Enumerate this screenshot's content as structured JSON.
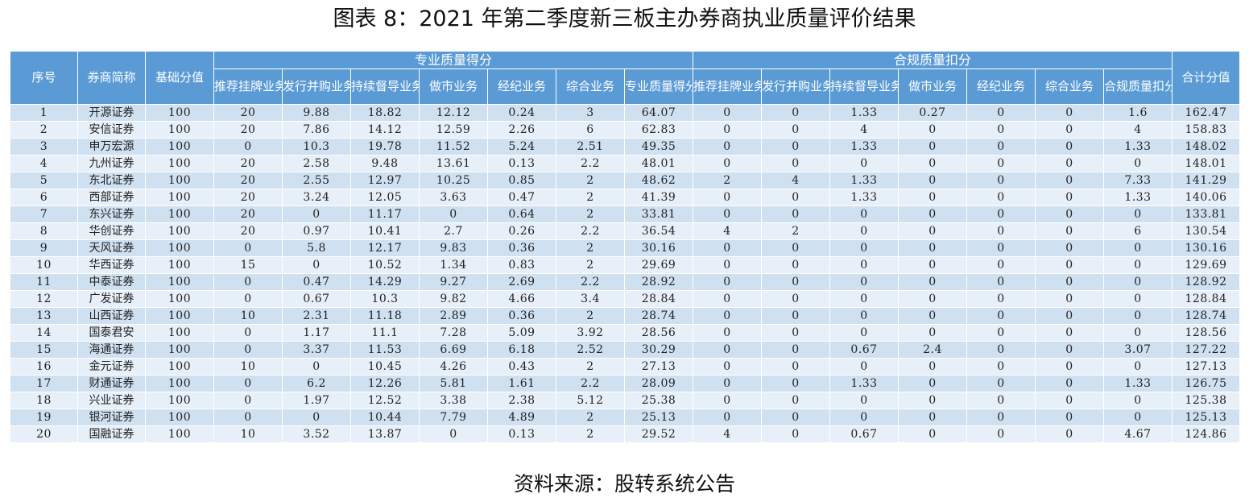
{
  "title": "图表 8：2021 年第二季度新三板主办券商执业质量评价结果",
  "source": "资料来源：股转系统公告",
  "headers": {
    "seq": "序号",
    "broker": "券商简称",
    "base": "基础分值",
    "pro_group": "专业质量得分",
    "comp_group": "合规质量扣分",
    "total": "合计分值",
    "pro_cols": [
      "推荐挂牌业务",
      "发行并购业务",
      "持续督导业务",
      "做市业务",
      "经纪业务",
      "综合业务",
      "专业质量得分合计"
    ],
    "comp_cols": [
      "推荐挂牌业务",
      "发行并购业务",
      "持续督导业务",
      "做市业务",
      "经纪业务",
      "综合业务",
      "合规质量扣分合计"
    ]
  },
  "rows": [
    [
      "1",
      "开源证券",
      "100",
      "20",
      "9.88",
      "18.82",
      "12.12",
      "0.24",
      "3",
      "64.07",
      "0",
      "0",
      "1.33",
      "0.27",
      "0",
      "0",
      "1.6",
      "162.47"
    ],
    [
      "2",
      "安信证券",
      "100",
      "20",
      "7.86",
      "14.12",
      "12.59",
      "2.26",
      "6",
      "62.83",
      "0",
      "0",
      "4",
      "0",
      "0",
      "0",
      "4",
      "158.83"
    ],
    [
      "3",
      "申万宏源",
      "100",
      "0",
      "10.3",
      "19.78",
      "11.52",
      "5.24",
      "2.51",
      "49.35",
      "0",
      "0",
      "1.33",
      "0",
      "0",
      "0",
      "1.33",
      "148.02"
    ],
    [
      "4",
      "九州证券",
      "100",
      "20",
      "2.58",
      "9.48",
      "13.61",
      "0.13",
      "2.2",
      "48.01",
      "0",
      "0",
      "0",
      "0",
      "0",
      "0",
      "0",
      "148.01"
    ],
    [
      "5",
      "东北证券",
      "100",
      "20",
      "2.55",
      "12.97",
      "10.25",
      "0.85",
      "2",
      "48.62",
      "2",
      "4",
      "1.33",
      "0",
      "0",
      "0",
      "7.33",
      "141.29"
    ],
    [
      "6",
      "西部证券",
      "100",
      "20",
      "3.24",
      "12.05",
      "3.63",
      "0.47",
      "2",
      "41.39",
      "0",
      "0",
      "1.33",
      "0",
      "0",
      "0",
      "1.33",
      "140.06"
    ],
    [
      "7",
      "东兴证券",
      "100",
      "20",
      "0",
      "11.17",
      "0",
      "0.64",
      "2",
      "33.81",
      "0",
      "0",
      "0",
      "0",
      "0",
      "0",
      "0",
      "133.81"
    ],
    [
      "8",
      "华创证券",
      "100",
      "20",
      "0.97",
      "10.41",
      "2.7",
      "0.26",
      "2.2",
      "36.54",
      "4",
      "2",
      "0",
      "0",
      "0",
      "0",
      "6",
      "130.54"
    ],
    [
      "9",
      "天风证券",
      "100",
      "0",
      "5.8",
      "12.17",
      "9.83",
      "0.36",
      "2",
      "30.16",
      "0",
      "0",
      "0",
      "0",
      "0",
      "0",
      "0",
      "130.16"
    ],
    [
      "10",
      "华西证券",
      "100",
      "15",
      "0",
      "10.52",
      "1.34",
      "0.83",
      "2",
      "29.69",
      "0",
      "0",
      "0",
      "0",
      "0",
      "0",
      "0",
      "129.69"
    ],
    [
      "11",
      "中泰证券",
      "100",
      "0",
      "0.47",
      "14.29",
      "9.27",
      "2.69",
      "2.2",
      "28.92",
      "0",
      "0",
      "0",
      "0",
      "0",
      "0",
      "0",
      "128.92"
    ],
    [
      "12",
      "广发证券",
      "100",
      "0",
      "0.67",
      "10.3",
      "9.82",
      "4.66",
      "3.4",
      "28.84",
      "0",
      "0",
      "0",
      "0",
      "0",
      "0",
      "0",
      "128.84"
    ],
    [
      "13",
      "山西证券",
      "100",
      "10",
      "2.31",
      "11.18",
      "2.89",
      "0.36",
      "2",
      "28.74",
      "0",
      "0",
      "0",
      "0",
      "0",
      "0",
      "0",
      "128.74"
    ],
    [
      "14",
      "国泰君安",
      "100",
      "0",
      "1.17",
      "11.1",
      "7.28",
      "5.09",
      "3.92",
      "28.56",
      "0",
      "0",
      "0",
      "0",
      "0",
      "0",
      "0",
      "128.56"
    ],
    [
      "15",
      "海通证券",
      "100",
      "0",
      "3.37",
      "11.53",
      "6.69",
      "6.18",
      "2.52",
      "30.29",
      "0",
      "0",
      "0.67",
      "2.4",
      "0",
      "0",
      "3.07",
      "127.22"
    ],
    [
      "16",
      "金元证券",
      "100",
      "10",
      "0",
      "10.45",
      "4.26",
      "0.43",
      "2",
      "27.13",
      "0",
      "0",
      "0",
      "0",
      "0",
      "0",
      "0",
      "127.13"
    ],
    [
      "17",
      "财通证券",
      "100",
      "0",
      "6.2",
      "12.26",
      "5.81",
      "1.61",
      "2.2",
      "28.09",
      "0",
      "0",
      "1.33",
      "0",
      "0",
      "0",
      "1.33",
      "126.75"
    ],
    [
      "18",
      "兴业证券",
      "100",
      "0",
      "1.97",
      "12.52",
      "3.38",
      "2.38",
      "5.12",
      "25.38",
      "0",
      "0",
      "0",
      "0",
      "0",
      "0",
      "0",
      "125.38"
    ],
    [
      "19",
      "银河证券",
      "100",
      "0",
      "0",
      "10.44",
      "7.79",
      "4.89",
      "2",
      "25.13",
      "0",
      "0",
      "0",
      "0",
      "0",
      "0",
      "0",
      "125.13"
    ],
    [
      "20",
      "国融证券",
      "100",
      "10",
      "3.52",
      "13.87",
      "0",
      "0.13",
      "2",
      "29.52",
      "4",
      "0",
      "0.67",
      "0",
      "0",
      "0",
      "4.67",
      "124.86"
    ]
  ]
}
